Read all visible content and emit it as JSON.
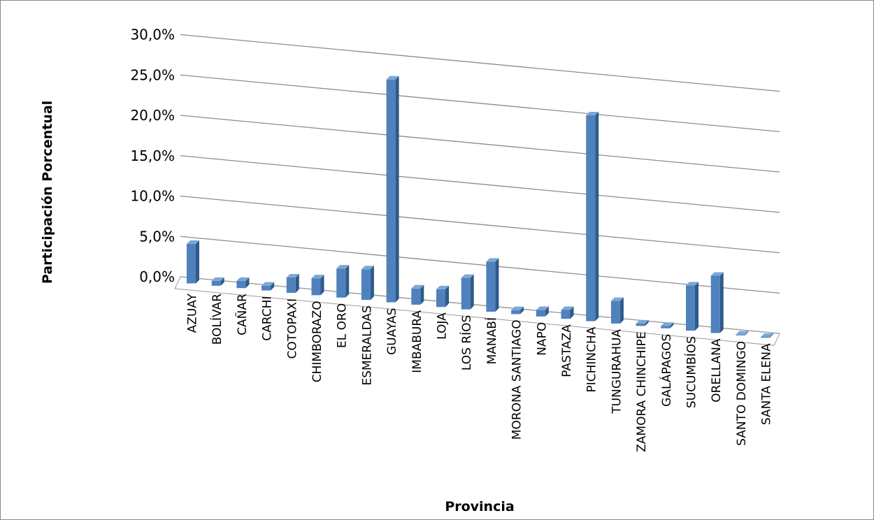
{
  "chart_data": {
    "type": "bar",
    "title": "",
    "xlabel": "Provincia",
    "ylabel": "Participación Porcentual",
    "ylim": [
      0,
      30
    ],
    "yticks": [
      "0,0%",
      "5,0%",
      "10,0%",
      "15,0%",
      "20,0%",
      "25,0%",
      "30,0%"
    ],
    "grid": true,
    "style": "3d-column",
    "colors": {
      "bar_front": "#4f81bd",
      "bar_side": "#2e5a8c",
      "bar_top": "#7ea6d6",
      "grid": "#8c8c8c"
    },
    "categories": [
      "AZUAY",
      "BOLÍVAR",
      "CAÑAR",
      "CARCHI",
      "COTOPAXI",
      "CHIMBORAZO",
      "EL ORO",
      "ESMERALDAS",
      "GUAYAS",
      "IMBABURA",
      "LOJA",
      "LOS RÍOS",
      "MANABÍ",
      "MORONA SANTIAGO",
      "NAPO",
      "PASTAZA",
      "PICHINCHA",
      "TUNGURAHUA",
      "ZAMORA CHINCHIPE",
      "GALÁPAGOS",
      "SUCUMBÍOS",
      "ORELLANA",
      "SANTO DOMINGO",
      "SANTA ELENA"
    ],
    "values": [
      4.9,
      0.6,
      0.9,
      0.6,
      1.9,
      2.1,
      3.6,
      3.8,
      27.6,
      2.0,
      2.2,
      3.9,
      6.2,
      0.5,
      0.8,
      1.1,
      25.5,
      2.8,
      0.3,
      0.3,
      5.6,
      7.1,
      0.1,
      0.1
    ]
  }
}
